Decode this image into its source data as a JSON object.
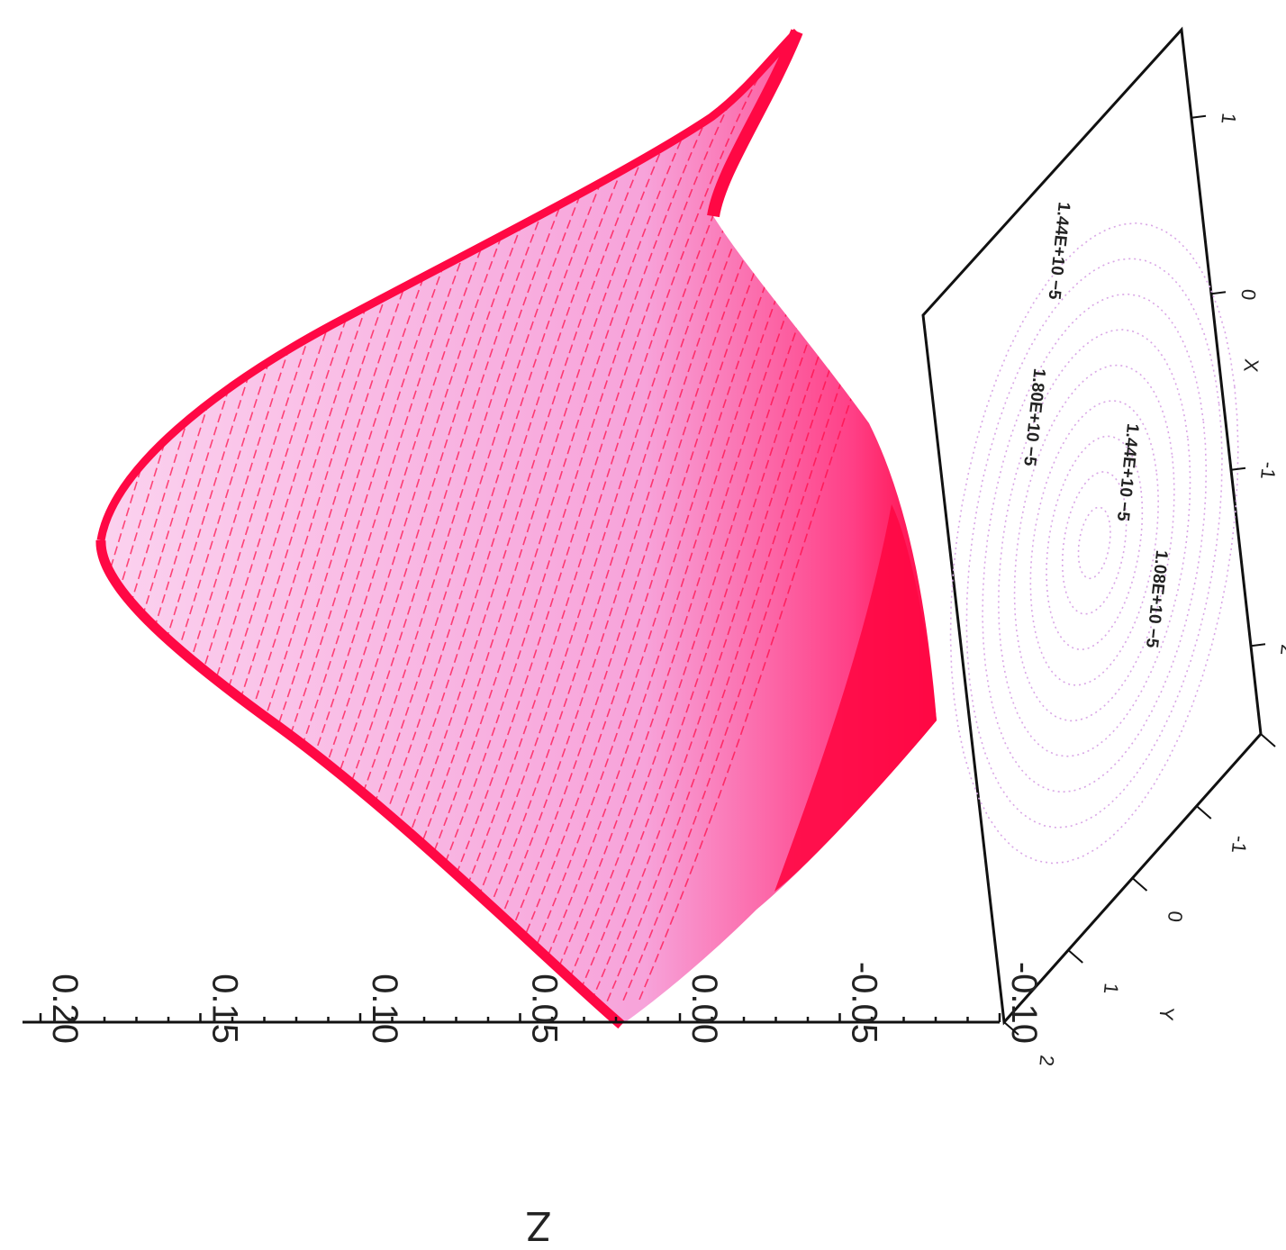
{
  "chart_data": {
    "type": "surface",
    "z_axis": {
      "label": "Z",
      "range": [
        -0.1,
        0.2
      ],
      "ticks": [
        "0.20",
        "0.15",
        "0.10",
        "0.05",
        "0.00",
        "-0.05",
        "-0.10"
      ]
    },
    "x_axis": {
      "label": "X",
      "ticks": [
        "1",
        "0",
        "-1",
        "-2"
      ]
    },
    "y_axis": {
      "label": "Y",
      "ticks": [
        "2",
        "1",
        "0",
        "-1",
        "-2"
      ]
    },
    "contour_labels": [
      "1.80E+10 −5",
      "1.44E+10 −5",
      "1.44E+10 −5",
      "1.08E+10 −5"
    ],
    "colors": {
      "surface_edge": "#ff0844",
      "surface_fill": "#f7a3da",
      "contour": "#d9a6e6",
      "axes": "#111111"
    },
    "render_mode": "wireframe mesh with contour projection on base plane"
  }
}
